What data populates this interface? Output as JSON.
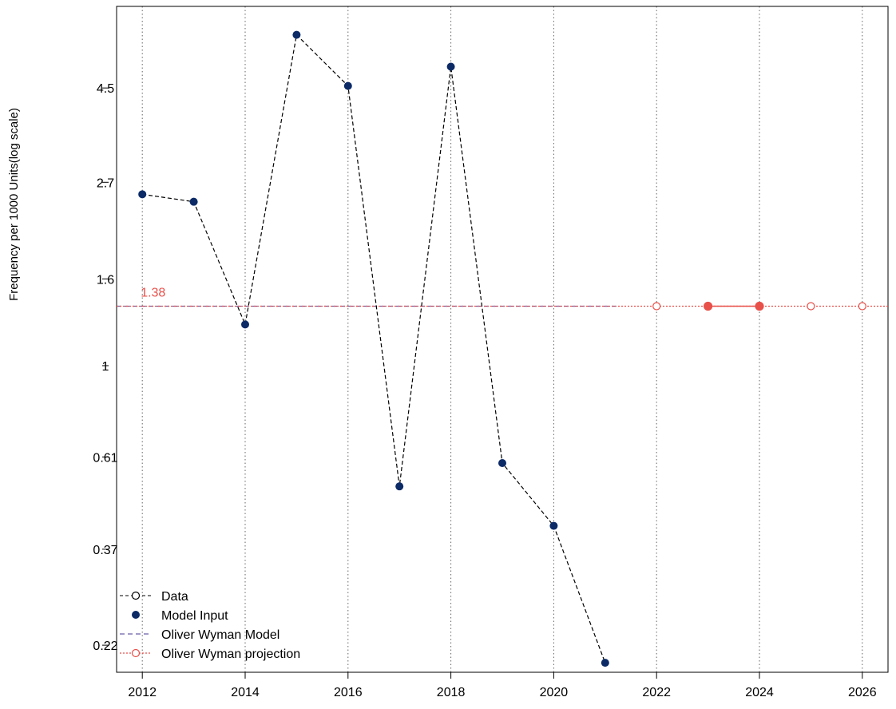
{
  "chart_data": {
    "type": "line",
    "title": "",
    "xlabel": "",
    "ylabel": "Frequency per 1000 Units(log scale)",
    "y_scale": "log",
    "xlim": [
      2011.5,
      2026.5
    ],
    "ylim": [
      0.19,
      7.0
    ],
    "x_ticks": [
      2012,
      2014,
      2016,
      2018,
      2020,
      2022,
      2024,
      2026
    ],
    "y_ticks": [
      0.22,
      0.37,
      0.61,
      1.0,
      1.6,
      2.7,
      4.5
    ],
    "grid": "vertical dotted",
    "legend_position": "bottom-left",
    "series": [
      {
        "name": "Data",
        "style": "dashed line with open circles",
        "color": "#000000",
        "x": [
          2012,
          2013,
          2014,
          2015,
          2016,
          2017,
          2018,
          2019,
          2020,
          2021
        ],
        "y": [
          2.53,
          2.43,
          1.25,
          6.0,
          4.55,
          0.52,
          5.05,
          0.59,
          0.42,
          0.2
        ]
      },
      {
        "name": "Model Input",
        "style": "filled circles",
        "color": "#0b2a66",
        "x": [
          2012,
          2013,
          2014,
          2015,
          2016,
          2017,
          2018,
          2019,
          2020,
          2021
        ],
        "y": [
          2.53,
          2.43,
          1.25,
          6.0,
          4.55,
          0.52,
          5.05,
          0.59,
          0.42,
          0.2
        ]
      },
      {
        "name": "Oliver Wyman Model",
        "style": "dashed line",
        "color": "#6a5fa8",
        "x": [
          2011.5,
          2021.2
        ],
        "y": [
          1.38,
          1.38
        ]
      },
      {
        "name": "Oliver Wyman projection",
        "style": "dotted line with open circles",
        "color": "#e8504a",
        "x": [
          2022,
          2023,
          2024,
          2025,
          2026
        ],
        "y": [
          1.38,
          1.38,
          1.38,
          1.38,
          1.38
        ],
        "filled_points_x": [
          2023,
          2024
        ]
      }
    ],
    "annotations": [
      {
        "text": "1.38",
        "x": 2012,
        "y": 1.38,
        "color": "#e8504a"
      }
    ]
  }
}
